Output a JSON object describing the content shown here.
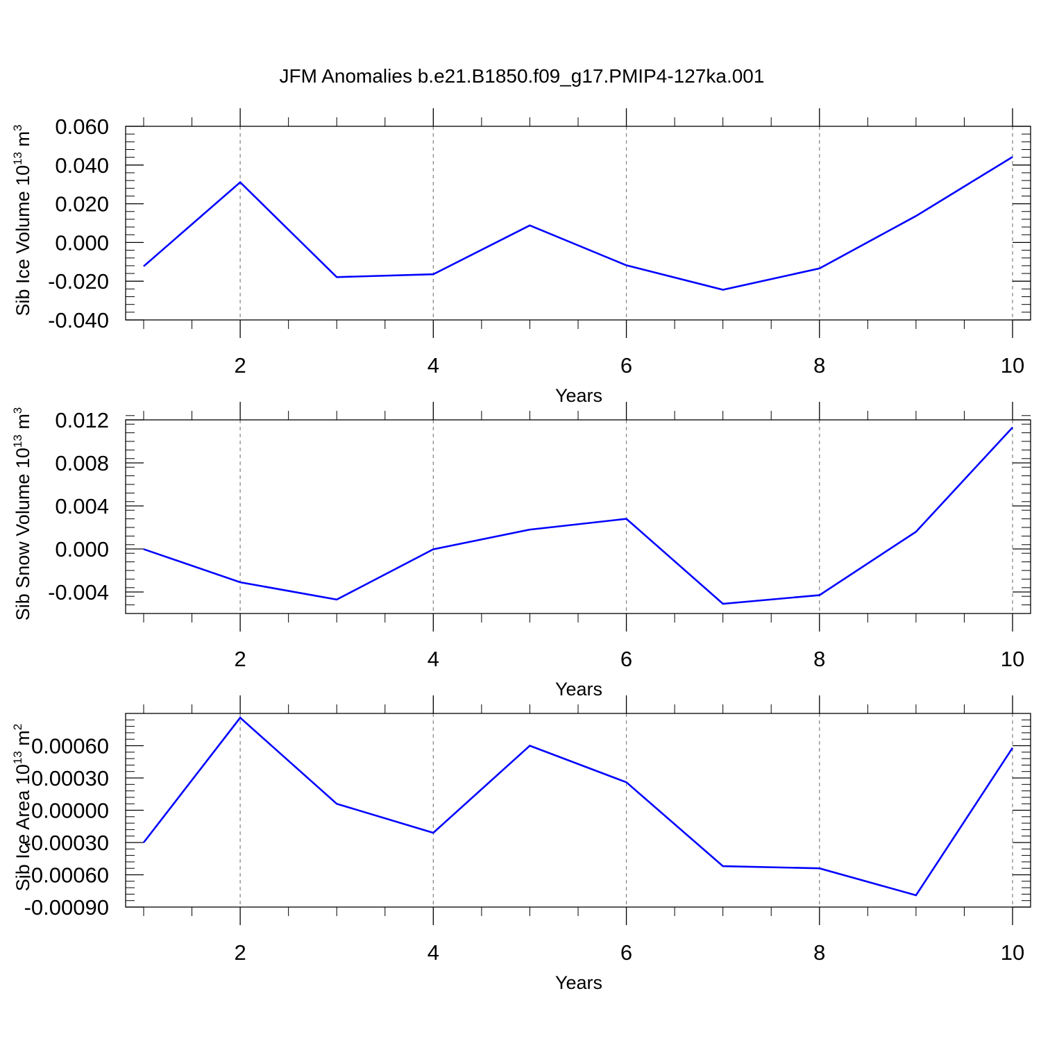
{
  "title": "JFM Anomalies b.e21.B1850.f09_g17.PMIP4-127ka.001",
  "colors": {
    "line": "#0000ff",
    "grid": "#808080",
    "frame": "#000000"
  },
  "chart_data": [
    {
      "type": "line",
      "ylabel": {
        "main": "Sib Ice Volume 10",
        "sup": "13",
        "tail": " m",
        "sup2": "3"
      },
      "xlabel": "Years",
      "xlim": [
        1,
        10
      ],
      "ylim": [
        -0.04,
        0.06
      ],
      "xticks": [
        2,
        4,
        6,
        8,
        10
      ],
      "xtick_labels": [
        "2",
        "4",
        "6",
        "8",
        "10"
      ],
      "yticks": [
        -0.04,
        -0.02,
        0.0,
        0.02,
        0.04,
        0.06
      ],
      "ytick_labels": [
        "-0.040",
        "-0.020",
        "0.000",
        "0.020",
        "0.040",
        "0.060"
      ],
      "x": [
        1,
        2,
        3,
        4,
        5,
        6,
        7,
        8,
        9,
        10
      ],
      "series": [
        {
          "name": "Sib Ice Volume",
          "values": [
            -0.0123,
            0.0311,
            -0.0179,
            -0.0164,
            0.0088,
            -0.0118,
            -0.0244,
            -0.0134,
            0.0137,
            0.0442
          ]
        }
      ]
    },
    {
      "type": "line",
      "ylabel": {
        "main": "Sib Snow Volume 10",
        "sup": "13",
        "tail": " m",
        "sup2": "3"
      },
      "xlabel": "Years",
      "xlim": [
        1,
        10
      ],
      "ylim": [
        -0.006,
        0.012
      ],
      "xticks": [
        2,
        4,
        6,
        8,
        10
      ],
      "xtick_labels": [
        "2",
        "4",
        "6",
        "8",
        "10"
      ],
      "yticks": [
        -0.004,
        0.0,
        0.004,
        0.008,
        0.012
      ],
      "ytick_labels": [
        "-0.004",
        "0.000",
        "0.004",
        "0.008",
        "0.012"
      ],
      "x": [
        1,
        2,
        3,
        4,
        5,
        6,
        7,
        8,
        9,
        10
      ],
      "series": [
        {
          "name": "Sib Snow Volume",
          "values": [
            -2e-05,
            -0.0031,
            -0.0047,
            -3e-05,
            0.0018,
            0.0028,
            -0.0051,
            -0.0043,
            0.0016,
            0.0113
          ]
        }
      ]
    },
    {
      "type": "line",
      "ylabel": {
        "main": "Sib Ice Area 10",
        "sup": "13",
        "tail": " m",
        "sup2": "2"
      },
      "xlabel": "Years",
      "xlim": [
        1,
        10
      ],
      "ylim": [
        -0.0009,
        0.0009
      ],
      "xticks": [
        2,
        4,
        6,
        8,
        10
      ],
      "xtick_labels": [
        "2",
        "4",
        "6",
        "8",
        "10"
      ],
      "yticks": [
        -0.0009,
        -0.0006,
        -0.0003,
        0.0,
        0.0003,
        0.0006
      ],
      "ytick_labels": [
        "-0.00090",
        "-0.00060",
        "-0.00030",
        "0.00000",
        "0.00030",
        "0.00060"
      ],
      "x": [
        1,
        2,
        3,
        4,
        5,
        6,
        7,
        8,
        9,
        10
      ],
      "series": [
        {
          "name": "Sib Ice Area",
          "values": [
            -0.0003,
            0.00086,
            6e-05,
            -0.00021,
            0.0006,
            0.00026,
            -0.00052,
            -0.00054,
            -0.00079,
            0.00058
          ]
        }
      ]
    }
  ]
}
